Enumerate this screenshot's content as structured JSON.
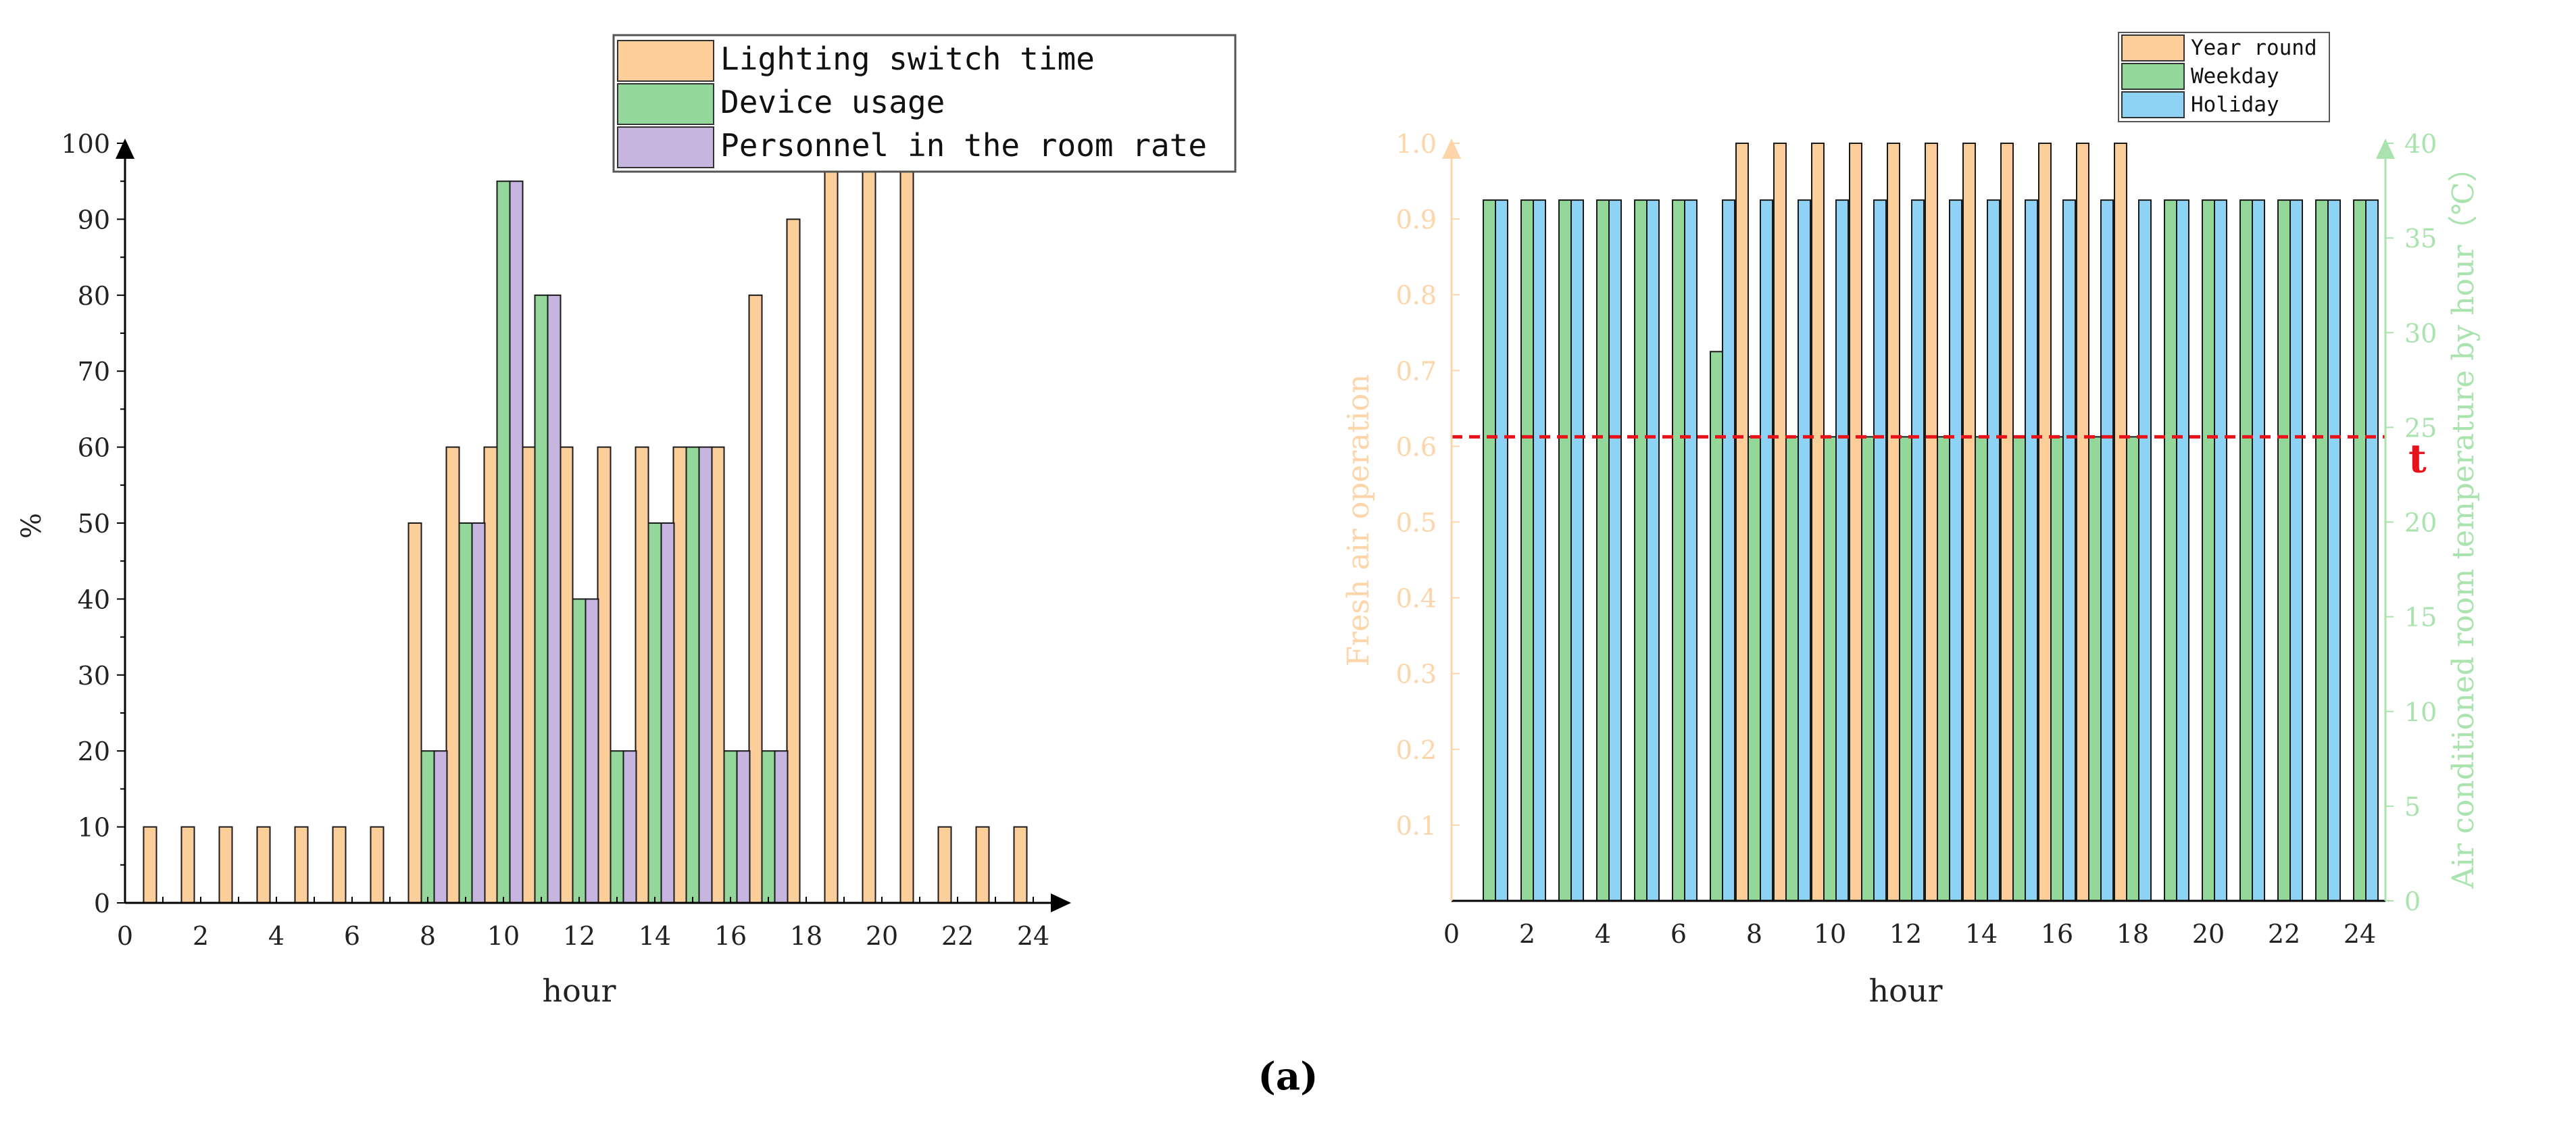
{
  "figure": {
    "panel_label": "(a)"
  },
  "colors": {
    "lighting": "#FCCF9A",
    "device": "#93D79A",
    "personnel": "#C6B5DF",
    "year_round": "#FCCF9A",
    "weekday": "#93D79A",
    "holiday": "#8ED3F3",
    "left_axis_right_chart": "#FDD5A8",
    "right_axis_right_chart": "#A9E3AE",
    "threshold_line": "#E8121A"
  },
  "chart_data": [
    {
      "type": "bar",
      "title": "",
      "xlabel": "hour",
      "ylabel": "%",
      "xlim": [
        0,
        25
      ],
      "ylim": [
        0,
        100
      ],
      "x_ticks": [
        0,
        2,
        4,
        6,
        8,
        10,
        12,
        14,
        16,
        18,
        20,
        22,
        24
      ],
      "y_ticks": [
        0,
        10,
        20,
        30,
        40,
        50,
        60,
        70,
        80,
        90,
        100
      ],
      "legend_position": "top-right",
      "hours": [
        1,
        2,
        3,
        4,
        5,
        6,
        7,
        8,
        9,
        10,
        11,
        12,
        13,
        14,
        15,
        16,
        17,
        18,
        19,
        20,
        21,
        22,
        23,
        24
      ],
      "series": [
        {
          "name": "Lighting switch time",
          "values": [
            10,
            10,
            10,
            10,
            10,
            10,
            10,
            50,
            60,
            60,
            60,
            60,
            60,
            60,
            60,
            60,
            80,
            90,
            100,
            100,
            100,
            10,
            10,
            10
          ]
        },
        {
          "name": "Device usage",
          "values": [
            0,
            0,
            0,
            0,
            0,
            0,
            0,
            20,
            50,
            95,
            80,
            40,
            20,
            50,
            60,
            20,
            20,
            0,
            0,
            0,
            0,
            0,
            0,
            0
          ]
        },
        {
          "name": "Personnel in the room rate",
          "values": [
            0,
            0,
            0,
            0,
            0,
            0,
            0,
            20,
            50,
            95,
            80,
            40,
            20,
            50,
            60,
            20,
            20,
            0,
            0,
            0,
            0,
            0,
            0,
            0
          ]
        }
      ]
    },
    {
      "type": "bar",
      "title": "",
      "xlabel": "hour",
      "ylabel": "Fresh air operation",
      "ylabel_right": "Air conditioned room temperature by hour（℃）",
      "xlim": [
        0,
        25
      ],
      "ylim": [
        0,
        1.0
      ],
      "ylim_right": [
        0,
        40
      ],
      "x_ticks": [
        0,
        2,
        4,
        6,
        8,
        10,
        12,
        14,
        16,
        18,
        20,
        22,
        24
      ],
      "y_ticks": [
        "0.1",
        "0.2",
        "0.3",
        "0.4",
        "0.5",
        "0.6",
        "0.7",
        "0.8",
        "0.9",
        "1.0"
      ],
      "y_ticks_right": [
        0,
        5,
        10,
        15,
        20,
        25,
        30,
        35,
        40
      ],
      "legend_position": "top-right",
      "hours": [
        1,
        2,
        3,
        4,
        5,
        6,
        7,
        8,
        9,
        10,
        11,
        12,
        13,
        14,
        15,
        16,
        17,
        18,
        19,
        20,
        21,
        22,
        23,
        24
      ],
      "series": [
        {
          "name": "Year round",
          "axis": "left",
          "values": [
            0,
            0,
            0,
            0,
            0,
            0,
            0,
            1,
            1,
            1,
            1,
            1,
            1,
            1,
            1,
            1,
            1,
            1,
            0,
            0,
            0,
            0,
            0,
            0
          ]
        },
        {
          "name": "Weekday",
          "axis": "right",
          "values": [
            37,
            37,
            37,
            37,
            37,
            37,
            29,
            24.5,
            24.5,
            24.5,
            24.5,
            24.5,
            24.5,
            24.5,
            24.5,
            24.5,
            24.5,
            24.5,
            37,
            37,
            37,
            37,
            37,
            37
          ]
        },
        {
          "name": "Holiday",
          "axis": "right",
          "values": [
            37,
            37,
            37,
            37,
            37,
            37,
            37,
            37,
            37,
            37,
            37,
            37,
            37,
            37,
            37,
            37,
            37,
            37,
            37,
            37,
            37,
            37,
            37,
            37
          ]
        }
      ],
      "threshold": {
        "label": "t",
        "value": 24.5
      }
    }
  ]
}
